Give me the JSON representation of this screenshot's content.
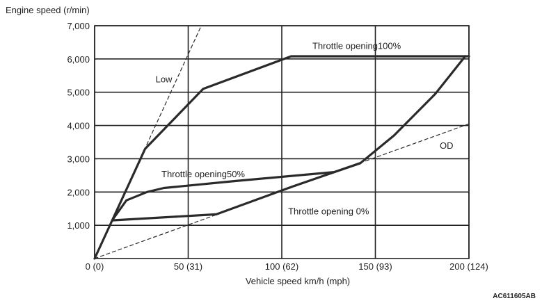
{
  "chart_data": {
    "type": "line",
    "title": "",
    "ylabel": "Engine speed (r/min)",
    "xlabel": "Vehicle speed  km/h (mph)",
    "figure_code": "AC611605AB",
    "xlim": [
      0,
      200
    ],
    "ylim": [
      0,
      7000
    ],
    "grid": true,
    "x_ticks": [
      {
        "value": 0,
        "label": "0 (0)"
      },
      {
        "value": 50,
        "label": "50 (31)"
      },
      {
        "value": 100,
        "label": "100 (62)"
      },
      {
        "value": 150,
        "label": "150 (93)"
      },
      {
        "value": 200,
        "label": "200 (124)"
      }
    ],
    "y_ticks": [
      {
        "value": 1000,
        "label": "1,000"
      },
      {
        "value": 2000,
        "label": "2,000"
      },
      {
        "value": 3000,
        "label": "3,000"
      },
      {
        "value": 4000,
        "label": "4,000"
      },
      {
        "value": 5000,
        "label": "5,000"
      },
      {
        "value": 6000,
        "label": "6,000"
      },
      {
        "value": 7000,
        "label": "7,000"
      }
    ],
    "series": [
      {
        "name": "Low",
        "style": "dashed",
        "x": [
          0,
          57
        ],
        "y": [
          0,
          7000
        ]
      },
      {
        "name": "OD",
        "style": "dashed",
        "x": [
          0,
          200
        ],
        "y": [
          0,
          4050
        ]
      },
      {
        "name": "Throttle opening100%",
        "style": "solid",
        "x": [
          0,
          27,
          58,
          105,
          200
        ],
        "y": [
          0,
          3300,
          5100,
          6080,
          6080
        ]
      },
      {
        "name": "Throttle opening50%",
        "style": "solid",
        "x": [
          10,
          17,
          28,
          37,
          75,
          128,
          142,
          160,
          182,
          198
        ],
        "y": [
          1200,
          1750,
          2000,
          2120,
          2330,
          2600,
          2870,
          3700,
          4950,
          6080
        ]
      },
      {
        "name": "Throttle opening 0%",
        "style": "solid",
        "x": [
          10,
          65,
          105,
          142
        ],
        "y": [
          1150,
          1330,
          2150,
          2870
        ]
      }
    ],
    "annotations": [
      {
        "text": "Low",
        "x": 37,
        "y": 5300
      },
      {
        "text": "OD",
        "x": 188,
        "y": 3300
      },
      {
        "text": "Throttle opening100%",
        "x": 140,
        "y": 6300
      },
      {
        "text": "Throttle opening50%",
        "x": 58,
        "y": 2450
      },
      {
        "text": "Throttle opening 0%",
        "x": 125,
        "y": 1330
      }
    ]
  },
  "colors": {
    "line": "#2a2a2a",
    "grid": "#222222",
    "text": "#222222"
  }
}
